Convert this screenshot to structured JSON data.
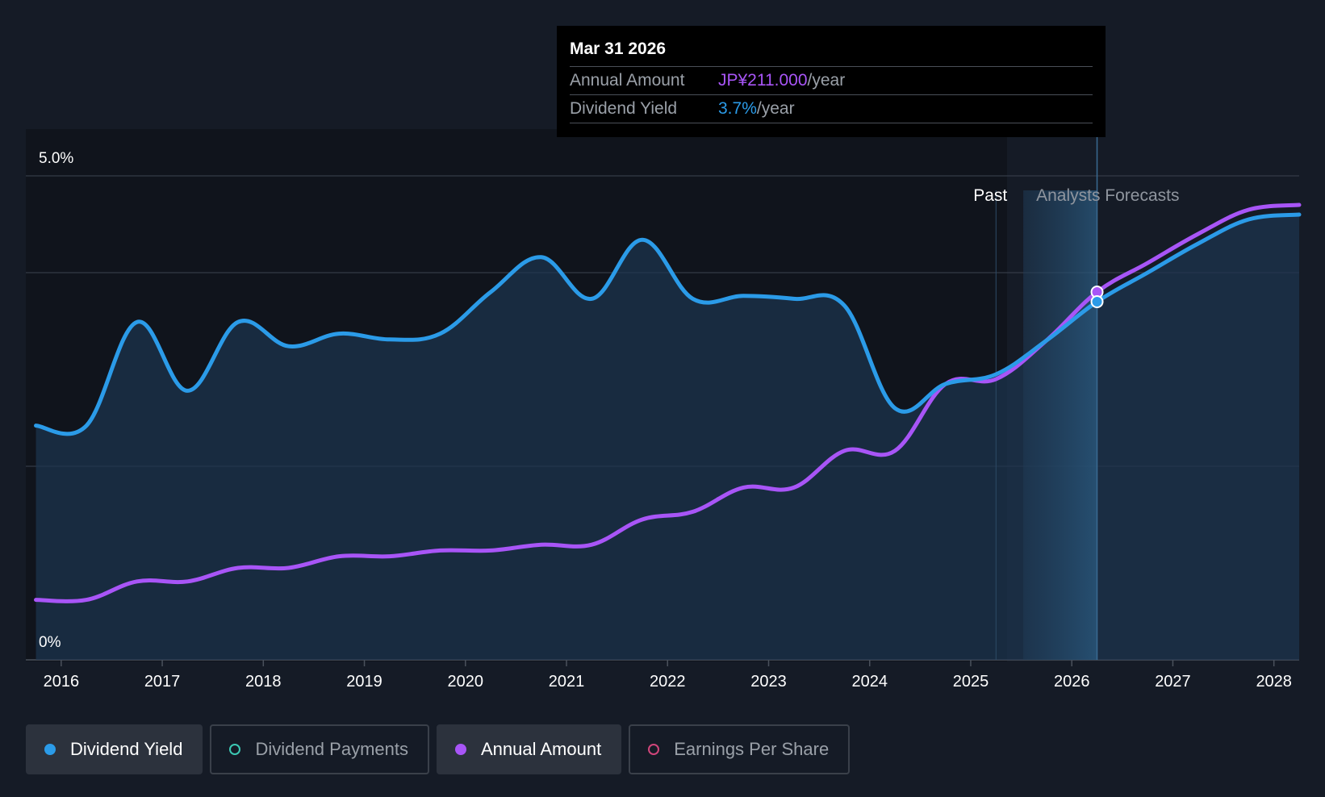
{
  "chart_data": {
    "type": "line",
    "y_axis": {
      "min": 0,
      "max": 5.0,
      "tick_labels": [
        "5.0%",
        "0%"
      ],
      "gridlines": [
        5.0,
        4.0,
        2.0
      ]
    },
    "x_axis": {
      "min": 2015.65,
      "max": 2028.25,
      "tick_labels": [
        "2016",
        "2017",
        "2018",
        "2019",
        "2020",
        "2021",
        "2022",
        "2023",
        "2024",
        "2025",
        "2026",
        "2027",
        "2028"
      ]
    },
    "regions": {
      "past_label": "Past",
      "forecast_label": "Analysts Forecasts",
      "past_end": 2025.25,
      "forecast_band_start": 2025.52,
      "cursor": 2026.25
    },
    "series": [
      {
        "name": "Dividend Yield",
        "color": "#2b9be8",
        "unit": "%",
        "x": [
          2015.75,
          2016.25,
          2016.75,
          2017.25,
          2017.75,
          2018.25,
          2018.75,
          2019.25,
          2019.75,
          2020.25,
          2020.75,
          2021.25,
          2021.75,
          2022.25,
          2022.75,
          2023.25,
          2023.75,
          2024.25,
          2024.75,
          2025.25,
          2025.75,
          2026.25,
          2026.75,
          2027.25,
          2027.75,
          2028.25
        ],
        "values": [
          2.42,
          2.42,
          3.49,
          2.78,
          3.49,
          3.24,
          3.37,
          3.31,
          3.37,
          3.8,
          4.16,
          3.73,
          4.34,
          3.73,
          3.76,
          3.73,
          3.66,
          2.6,
          2.85,
          2.95,
          3.3,
          3.7,
          4.0,
          4.3,
          4.55,
          4.6
        ]
      },
      {
        "name": "Annual Amount",
        "color": "#a855f7",
        "x": [
          2015.75,
          2016.25,
          2016.75,
          2017.25,
          2017.75,
          2018.25,
          2018.75,
          2019.25,
          2019.75,
          2020.25,
          2020.75,
          2021.25,
          2021.75,
          2022.25,
          2022.75,
          2023.25,
          2023.75,
          2024.25,
          2024.75,
          2025.25,
          2025.75,
          2026.25,
          2026.75,
          2027.25,
          2027.75,
          2028.25
        ],
        "values": [
          0.62,
          0.62,
          0.81,
          0.81,
          0.95,
          0.95,
          1.07,
          1.07,
          1.13,
          1.13,
          1.19,
          1.19,
          1.45,
          1.53,
          1.78,
          1.78,
          2.16,
          2.16,
          2.85,
          2.9,
          3.3,
          3.8,
          4.1,
          4.4,
          4.65,
          4.7
        ]
      }
    ],
    "highlight_x": 2026.25
  },
  "tooltip": {
    "date": "Mar 31 2026",
    "rows": [
      {
        "label": "Annual Amount",
        "value": "JP¥211.000",
        "unit": "/year"
      },
      {
        "label": "Dividend Yield",
        "value": "3.7%",
        "unit": "/year"
      }
    ]
  },
  "legend": [
    {
      "label": "Dividend Yield",
      "color": "#2b9be8",
      "active": true
    },
    {
      "label": "Dividend Payments",
      "color": "#3cc9b4",
      "active": false
    },
    {
      "label": "Annual Amount",
      "color": "#a855f7",
      "active": true
    },
    {
      "label": "Earnings Per Share",
      "color": "#d0457a",
      "active": false
    }
  ]
}
